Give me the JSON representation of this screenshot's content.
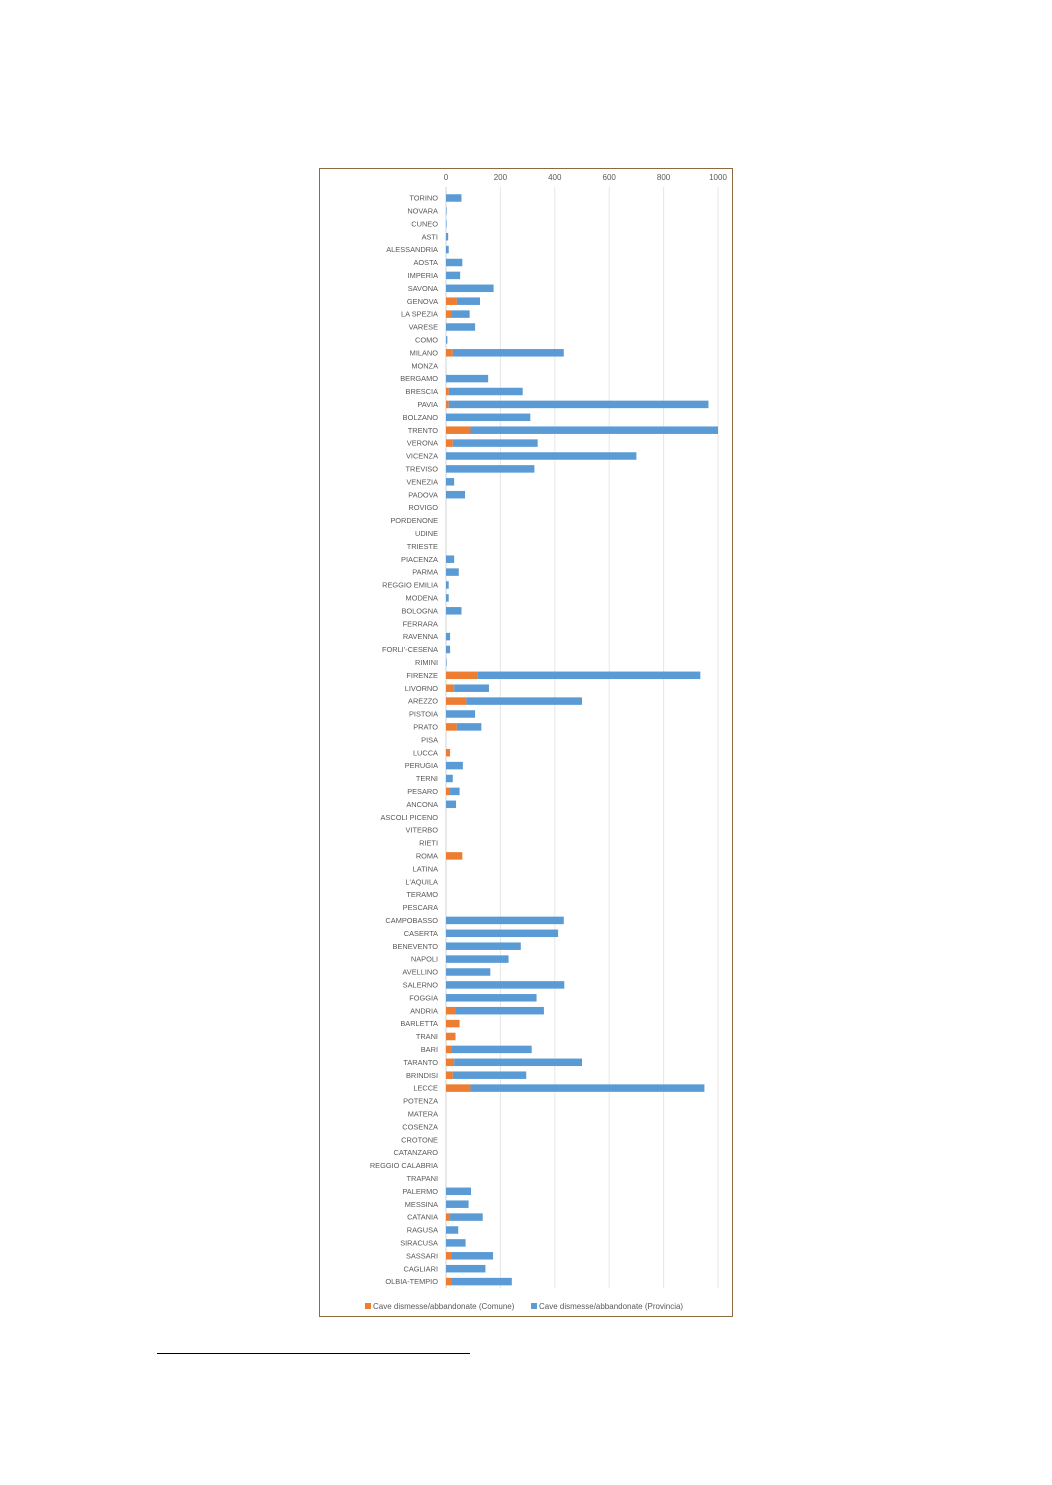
{
  "chart_data": {
    "type": "bar",
    "orientation": "horizontal",
    "stacked": true,
    "title": "",
    "xlabel": "",
    "ylabel": "",
    "xlim": [
      0,
      1000
    ],
    "x_ticks": [
      "0",
      "200",
      "400",
      "600",
      "800",
      "1000"
    ],
    "x_axis_position": "top",
    "grid": true,
    "legend_position": "bottom",
    "categories": [
      "TORINO",
      "NOVARA",
      "CUNEO",
      "ASTI",
      "ALESSANDRIA",
      "AOSTA",
      "IMPERIA",
      "SAVONA",
      "GENOVA",
      "LA SPEZIA",
      "VARESE",
      "COMO",
      "MILANO",
      "MONZA",
      "BERGAMO",
      "BRESCIA",
      "PAVIA",
      "BOLZANO",
      "TRENTO",
      "VERONA",
      "VICENZA",
      "TREVISO",
      "VENEZIA",
      "PADOVA",
      "ROVIGO",
      "PORDENONE",
      "UDINE",
      "TRIESTE",
      "PIACENZA",
      "PARMA",
      "REGGIO EMILIA",
      "MODENA",
      "BOLOGNA",
      "FERRARA",
      "RAVENNA",
      "FORLI'-CESENA",
      "RIMINI",
      "FIRENZE",
      "LIVORNO",
      "AREZZO",
      "PISTOIA",
      "PRATO",
      "PISA",
      "LUCCA",
      "PERUGIA",
      "TERNI",
      "PESARO",
      "ANCONA",
      "ASCOLI PICENO",
      "VITERBO",
      "RIETI",
      "ROMA",
      "LATINA",
      "L'AQUILA",
      "TERAMO",
      "PESCARA",
      "CAMPOBASSO",
      "CASERTA",
      "BENEVENTO",
      "NAPOLI",
      "AVELLINO",
      "SALERNO",
      "FOGGIA",
      "ANDRIA",
      "BARLETTA",
      "TRANI",
      "BARI",
      "TARANTO",
      "BRINDISI",
      "LECCE",
      "POTENZA",
      "MATERA",
      "COSENZA",
      "CROTONE",
      "CATANZARO",
      "REGGIO CALABRIA",
      "TRAPANI",
      "PALERMO",
      "MESSINA",
      "CATANIA",
      "RAGUSA",
      "SIRACUSA",
      "SASSARI",
      "CAGLIARI",
      "OLBIA-TEMPIO"
    ],
    "series": [
      {
        "name": "Cave dismesse/abbandonate (Comune)",
        "color": "#ed7d31",
        "values": [
          0,
          0,
          0,
          0,
          0,
          0,
          0,
          0,
          40,
          20,
          0,
          0,
          25,
          0,
          0,
          10,
          10,
          0,
          90,
          25,
          0,
          0,
          0,
          0,
          0,
          0,
          0,
          0,
          0,
          0,
          0,
          0,
          0,
          0,
          0,
          0,
          0,
          115,
          30,
          75,
          0,
          40,
          0,
          15,
          0,
          0,
          15,
          0,
          0,
          0,
          0,
          60,
          0,
          0,
          0,
          0,
          0,
          0,
          0,
          0,
          0,
          0,
          0,
          35,
          50,
          35,
          20,
          30,
          25,
          90,
          0,
          0,
          0,
          0,
          0,
          0,
          0,
          0,
          0,
          15,
          0,
          0,
          20,
          0,
          20
        ]
      },
      {
        "name": "Cave dismesse/abbandonate (Provincia)",
        "color": "#5b9bd5",
        "values": [
          57,
          2,
          2,
          8,
          10,
          60,
          52,
          175,
          85,
          67,
          107,
          5,
          408,
          0,
          155,
          272,
          955,
          310,
          910,
          312,
          700,
          325,
          30,
          70,
          0,
          0,
          0,
          0,
          30,
          47,
          10,
          10,
          57,
          0,
          15,
          15,
          2,
          820,
          128,
          425,
          107,
          90,
          0,
          0,
          62,
          25,
          35,
          37,
          0,
          0,
          0,
          0,
          0,
          0,
          0,
          0,
          433,
          412,
          275,
          230,
          163,
          435,
          333,
          325,
          0,
          0,
          295,
          470,
          270,
          860,
          0,
          0,
          0,
          0,
          0,
          0,
          0,
          92,
          83,
          120,
          45,
          72,
          153,
          145,
          222
        ]
      }
    ]
  }
}
